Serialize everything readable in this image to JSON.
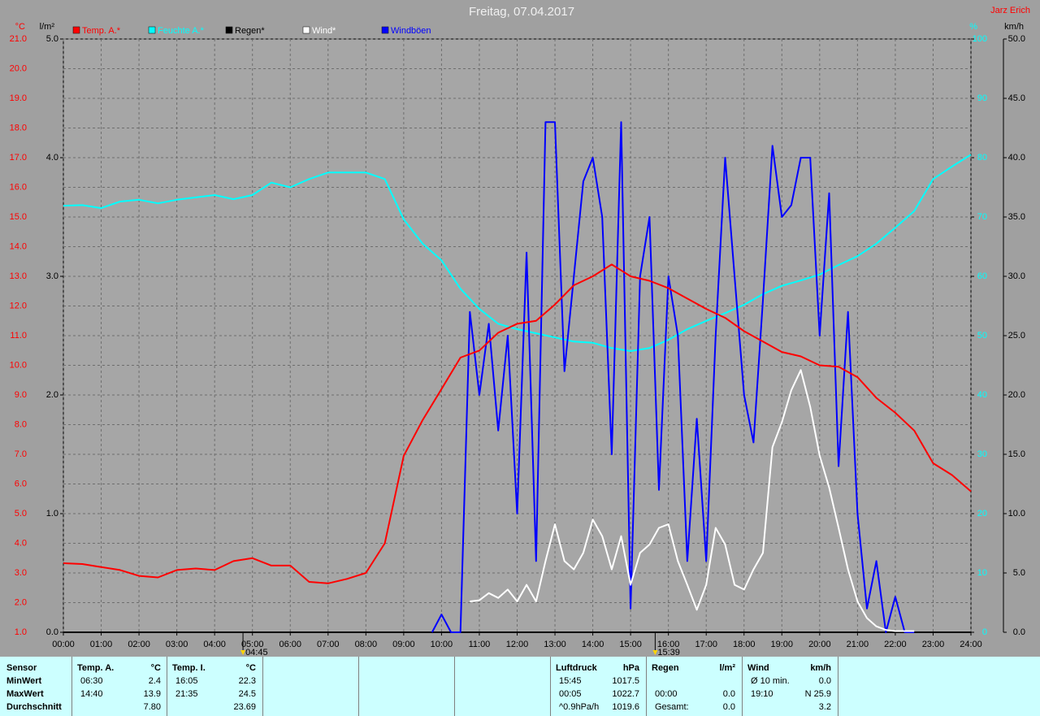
{
  "chart_data": {
    "type": "line",
    "title": "Freitag, 07.04.2017",
    "author": "Jarz Erich",
    "units": {
      "y": "°C",
      "y2": "l/m²",
      "y3": "%",
      "y4": "km/h"
    },
    "legend": "top",
    "grid": true,
    "xlim": [
      0,
      24
    ],
    "xticks": [
      {
        "value": 0,
        "label": "00:00"
      },
      {
        "value": 1,
        "label": "01:00"
      },
      {
        "value": 2,
        "label": "02:00"
      },
      {
        "value": 3,
        "label": "03:00"
      },
      {
        "value": 4,
        "label": "04:00"
      },
      {
        "value": 5,
        "label": "05:00"
      },
      {
        "value": 6,
        "label": "06:00"
      },
      {
        "value": 7,
        "label": "07:00"
      },
      {
        "value": 8,
        "label": "08:00"
      },
      {
        "value": 9,
        "label": "09:00"
      },
      {
        "value": 10,
        "label": "10:00"
      },
      {
        "value": 11,
        "label": "11:00"
      },
      {
        "value": 12,
        "label": "12:00"
      },
      {
        "value": 13,
        "label": "13:00"
      },
      {
        "value": 14,
        "label": "14:00"
      },
      {
        "value": 15,
        "label": "15:00"
      },
      {
        "value": 16,
        "label": "16:00"
      },
      {
        "value": 17,
        "label": "17:00"
      },
      {
        "value": 18,
        "label": "18:00"
      },
      {
        "value": 19,
        "label": "19:00"
      },
      {
        "value": 20,
        "label": "20:00"
      },
      {
        "value": 21,
        "label": "21:00"
      },
      {
        "value": 22,
        "label": "22:00"
      },
      {
        "value": 23,
        "label": "23:00"
      },
      {
        "value": 24,
        "label": "24:00"
      }
    ],
    "annotations": [
      {
        "x": 4.75,
        "label": "04:45"
      },
      {
        "x": 15.65,
        "label": "15:39"
      }
    ],
    "ylim": [
      1,
      21
    ],
    "yticks": [
      {
        "value": 1,
        "label": "1.0"
      },
      {
        "value": 2,
        "label": "2.0"
      },
      {
        "value": 3,
        "label": "3.0"
      },
      {
        "value": 4,
        "label": "4.0"
      },
      {
        "value": 5,
        "label": "5.0"
      },
      {
        "value": 6,
        "label": "6.0"
      },
      {
        "value": 7,
        "label": "7.0"
      },
      {
        "value": 8,
        "label": "8.0"
      },
      {
        "value": 9,
        "label": "9.0"
      },
      {
        "value": 10,
        "label": "10.0"
      },
      {
        "value": 11,
        "label": "11.0"
      },
      {
        "value": 12,
        "label": "12.0"
      },
      {
        "value": 13,
        "label": "13.0"
      },
      {
        "value": 14,
        "label": "14.0"
      },
      {
        "value": 15,
        "label": "15.0"
      },
      {
        "value": 16,
        "label": "16.0"
      },
      {
        "value": 17,
        "label": "17.0"
      },
      {
        "value": 18,
        "label": "18.0"
      },
      {
        "value": 19,
        "label": "19.0"
      },
      {
        "value": 20,
        "label": "20.0"
      },
      {
        "value": 21,
        "label": "21.0"
      }
    ],
    "y2lim": [
      0,
      5
    ],
    "y2ticks": [
      {
        "value": 0,
        "label": "0.0"
      },
      {
        "value": 1,
        "label": "1.0"
      },
      {
        "value": 2,
        "label": "2.0"
      },
      {
        "value": 3,
        "label": "3.0"
      },
      {
        "value": 4,
        "label": "4.0"
      },
      {
        "value": 5,
        "label": "5.0"
      }
    ],
    "y3lim": [
      0,
      100
    ],
    "y3ticks": [
      0,
      10,
      20,
      30,
      40,
      50,
      60,
      70,
      80,
      90,
      100
    ],
    "y4lim": [
      0,
      50
    ],
    "y4ticks": [
      {
        "value": 0,
        "label": "0.0"
      },
      {
        "value": 5,
        "label": "5.0"
      },
      {
        "value": 10,
        "label": "10.0"
      },
      {
        "value": 15,
        "label": "15.0"
      },
      {
        "value": 20,
        "label": "20.0"
      },
      {
        "value": 25,
        "label": "25.0"
      },
      {
        "value": 30,
        "label": "30.0"
      },
      {
        "value": 35,
        "label": "35.0"
      },
      {
        "value": 40,
        "label": "40.0"
      },
      {
        "value": 45,
        "label": "45.0"
      },
      {
        "value": 50,
        "label": "50.0"
      }
    ],
    "x": [
      0,
      0.5,
      1,
      1.5,
      2,
      2.5,
      3,
      3.5,
      4,
      4.5,
      5,
      5.5,
      6,
      6.5,
      7,
      7.5,
      8,
      8.5,
      9,
      9.5,
      10,
      10.5,
      11,
      11.5,
      12,
      12.5,
      13,
      13.5,
      14,
      14.5,
      15,
      15.5,
      16,
      16.5,
      17,
      17.5,
      18,
      18.5,
      19,
      19.5,
      20,
      20.5,
      21,
      21.5,
      22,
      22.5,
      23,
      23.5,
      24
    ],
    "series": [
      {
        "name": "Temp. A.*",
        "color": "#ff0000",
        "axis": "y",
        "values": [
          3.33,
          3.3,
          3.2,
          3.1,
          2.9,
          2.85,
          3.1,
          3.15,
          3.1,
          3.4,
          3.5,
          3.25,
          3.25,
          2.7,
          2.65,
          2.8,
          3.0,
          4.0,
          6.95,
          8.15,
          9.2,
          10.26,
          10.5,
          11.1,
          11.4,
          11.5,
          12.05,
          12.7,
          13.0,
          13.4,
          13.0,
          12.85,
          12.6,
          12.25,
          11.9,
          11.6,
          11.15,
          10.8,
          10.45,
          10.3,
          10.0,
          9.95,
          9.6,
          8.9,
          8.4,
          7.8,
          6.7,
          6.3,
          5.75
        ]
      },
      {
        "name": "Feuchte A.*",
        "color": "#00ffff",
        "axis": "y3",
        "values": [
          71.9,
          72,
          71.5,
          72.6,
          72.9,
          72.3,
          72.9,
          73.3,
          73.7,
          73,
          73.7,
          75.8,
          75,
          76.4,
          77.5,
          77.5,
          77.5,
          76.4,
          69.6,
          65.5,
          62.7,
          57.9,
          54.5,
          52,
          51.1,
          50.4,
          49.7,
          49,
          48.8,
          47.9,
          47.4,
          47.9,
          49.3,
          51.1,
          52.5,
          53.8,
          55.2,
          57,
          58.4,
          59.3,
          60.3,
          61.9,
          63.4,
          65.5,
          68.2,
          71,
          76.4,
          78.5,
          80.5
        ]
      },
      {
        "name": "Regen*",
        "color": "#000000",
        "axis": "y2",
        "values": [
          0,
          0,
          0,
          0,
          0,
          0,
          0,
          0,
          0,
          0,
          0,
          0,
          0,
          0,
          0,
          0,
          0,
          0,
          0,
          0,
          0,
          0,
          0,
          0,
          0,
          0,
          0,
          0,
          0,
          0,
          0,
          0,
          0,
          0,
          0,
          0,
          0,
          0,
          0,
          0,
          0,
          0,
          0,
          0,
          0,
          0,
          0,
          0,
          0
        ]
      },
      {
        "name": "Wind*",
        "color": "#ffffff",
        "axis": "y4",
        "x": [
          9.75,
          10,
          10.25,
          10.5,
          10.75,
          11,
          11.25,
          11.5,
          11.75,
          12,
          12.25,
          12.5,
          12.75,
          13,
          13.25,
          13.5,
          13.75,
          14,
          14.25,
          14.5,
          14.75,
          15,
          15.25,
          15.5,
          15.75,
          16,
          16.25,
          16.5,
          16.75,
          17,
          17.25,
          17.5,
          17.75,
          18,
          18.25,
          18.5,
          18.75,
          19,
          19.25,
          19.5,
          19.75,
          20,
          20.25,
          20.5,
          20.75,
          21,
          21.25,
          21.5,
          21.75,
          22,
          22.25,
          22.5
        ],
        "values": [
          null,
          null,
          null,
          null,
          2.6,
          2.7,
          3.3,
          2.9,
          3.6,
          2.6,
          4,
          2.6,
          6,
          9.1,
          6,
          5.3,
          6.7,
          9.5,
          8.1,
          5.3,
          8.1,
          4,
          6.7,
          7.4,
          8.8,
          9.1,
          6,
          4,
          1.9,
          4,
          8.8,
          7.4,
          4,
          3.6,
          5.3,
          6.7,
          15.6,
          17.7,
          20.4,
          22.1,
          19,
          14.9,
          12.2,
          8.8,
          5.3,
          2.6,
          1.2,
          0.5,
          0.2,
          0.1,
          0.1,
          0.1
        ]
      },
      {
        "name": "Windböen",
        "color": "#0000ff",
        "axis": "y4",
        "x": [
          9.75,
          10,
          10.25,
          10.5,
          10.75,
          11,
          11.25,
          11.5,
          11.75,
          12,
          12.25,
          12.5,
          12.75,
          13,
          13.25,
          13.5,
          13.75,
          14,
          14.25,
          14.5,
          14.75,
          15,
          15.25,
          15.5,
          15.75,
          16,
          16.25,
          16.5,
          16.75,
          17,
          17.25,
          17.5,
          17.75,
          18,
          18.25,
          18.5,
          18.75,
          19,
          19.25,
          19.5,
          19.75,
          20,
          20.25,
          20.5,
          20.75,
          21,
          21.25,
          21.5,
          21.75,
          22,
          22.25,
          22.5
        ],
        "values": [
          0,
          1.5,
          0,
          0,
          27,
          20,
          26,
          17,
          25,
          10,
          32,
          6,
          43,
          43,
          22,
          30,
          38,
          40,
          35,
          15,
          43,
          2,
          30,
          35,
          12,
          30,
          25,
          6,
          18,
          6,
          25,
          40,
          30,
          20,
          16,
          28,
          41,
          35,
          36,
          40,
          40,
          25,
          37,
          14,
          27,
          10,
          2,
          6,
          0,
          3,
          0,
          0
        ]
      }
    ]
  },
  "table": {
    "sensor": [
      "Sensor",
      "MinWert",
      "MaxWert",
      "Durchschnitt"
    ],
    "blocks": [
      {
        "header": [
          "Temp. A.",
          "°C"
        ],
        "rows": [
          [
            "06:30",
            "2.4"
          ],
          [
            "14:40",
            "13.9"
          ],
          [
            null,
            "7.80"
          ]
        ]
      },
      {
        "header": [
          "Temp. I.",
          "°C"
        ],
        "rows": [
          [
            "16:05",
            "22.3"
          ],
          [
            "21:35",
            "24.5"
          ],
          [
            null,
            "23.69"
          ]
        ]
      },
      {
        "header": [
          "Luftdruck",
          "hPa"
        ],
        "rows": [
          [
            "15:45",
            "1017.5"
          ],
          [
            "00:05",
            "1022.7"
          ],
          [
            "^0.9hPa/h",
            "1019.6"
          ]
        ]
      },
      {
        "header": [
          "Regen",
          "l/m²"
        ],
        "rows": [
          [
            null,
            null
          ],
          [
            "00:00",
            "0.0"
          ],
          [
            "Gesamt:",
            "0.0"
          ]
        ]
      },
      {
        "header": [
          "Wind",
          "km/h"
        ],
        "rows": [
          [
            "Ø 10 min.",
            "0.0"
          ],
          [
            "19:10",
            "N 25.9"
          ],
          [
            null,
            "3.2"
          ]
        ]
      }
    ]
  }
}
